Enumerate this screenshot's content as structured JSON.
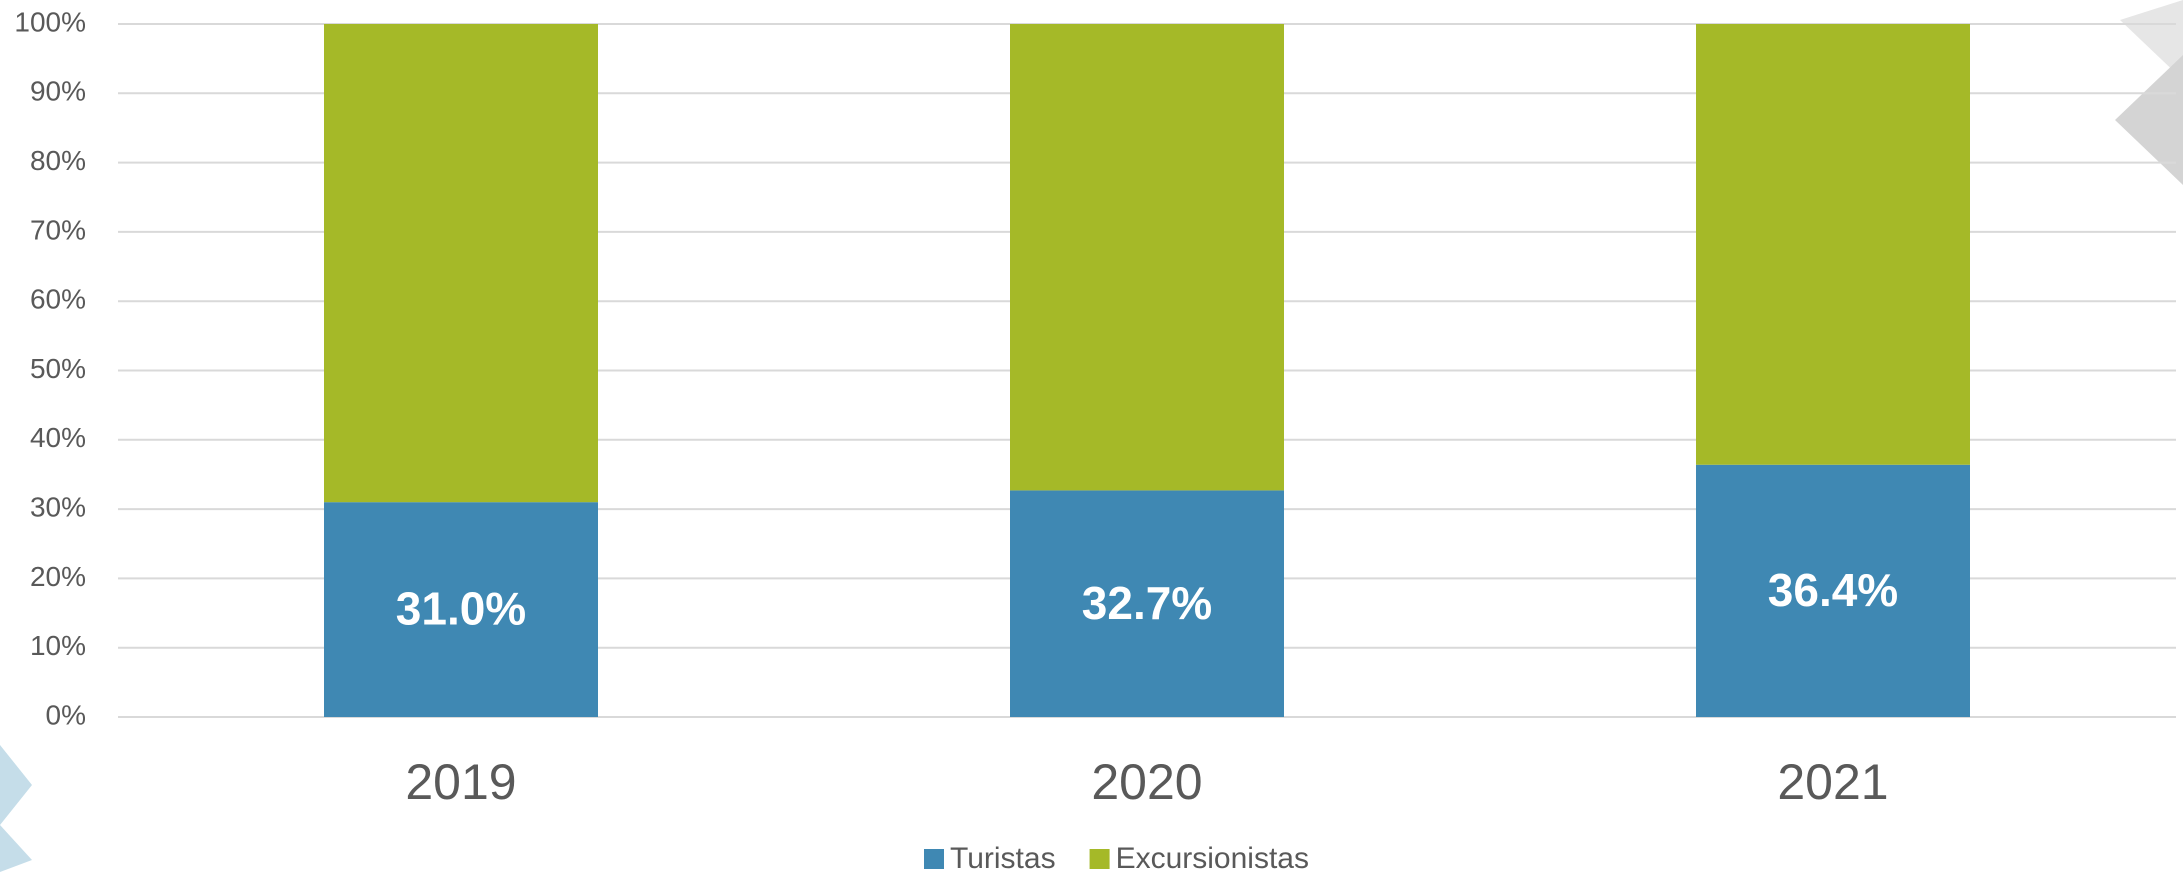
{
  "chart_data": {
    "type": "stacked_bar_100",
    "categories": [
      "2019",
      "2020",
      "2021"
    ],
    "series": [
      {
        "name": "Turistas",
        "color": "#3f88b3",
        "values": [
          31.0,
          32.7,
          36.4
        ],
        "value_labels": [
          "31.0%",
          "32.7%",
          "36.4%"
        ]
      },
      {
        "name": "Excursionistas",
        "color": "#a5b928",
        "values": [
          69.0,
          67.3,
          63.6
        ]
      }
    ],
    "ylim": [
      0,
      100
    ],
    "yticks": [
      {
        "value": 0,
        "label": "0%"
      },
      {
        "value": 10,
        "label": "10%"
      },
      {
        "value": 20,
        "label": "20%"
      },
      {
        "value": 30,
        "label": "30%"
      },
      {
        "value": 40,
        "label": "40%"
      },
      {
        "value": 50,
        "label": "50%"
      },
      {
        "value": 60,
        "label": "60%"
      },
      {
        "value": 70,
        "label": "70%"
      },
      {
        "value": 80,
        "label": "80%"
      },
      {
        "value": 90,
        "label": "90%"
      },
      {
        "value": 100,
        "label": "100%"
      }
    ],
    "grid": true,
    "legend": "bottom"
  }
}
